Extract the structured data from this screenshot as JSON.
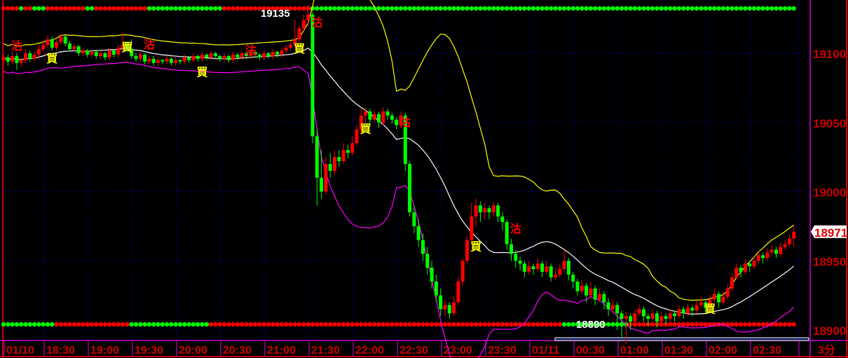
{
  "chart_data": {
    "type": "candlestick",
    "interval_label": "3分",
    "y_ticks": [
      19100,
      19050,
      19000,
      18950,
      18900
    ],
    "ylim": [
      18885,
      19140
    ],
    "x_tick_labels": [
      "01/10",
      "18:30",
      "19:00",
      "19:30",
      "20:00",
      "20:30",
      "21:00",
      "21:30",
      "22:00",
      "22:30",
      "23:00",
      "23:30",
      "01/11",
      "00:30",
      "01:00",
      "01:30",
      "02:00",
      "02:30"
    ],
    "last_price": "18971",
    "high_label": "19135",
    "low_label": "18890",
    "grid": true,
    "colors": {
      "up": "#ff0000",
      "down": "#00ff00",
      "upper_band": "#ffff00",
      "middle_band": "#ffffff",
      "lower_band": "#ff00ff",
      "axis_text": "#cc0000",
      "grid": "#0000cc",
      "frame": "#990099"
    },
    "signal_labels": {
      "buy": "買",
      "sell": "沽"
    },
    "signals": [
      [
        3,
        19106,
        "sell"
      ],
      [
        11,
        19097,
        "buy"
      ],
      [
        28,
        19105,
        "buy"
      ],
      [
        33,
        19107,
        "sell"
      ],
      [
        45,
        19087,
        "buy"
      ],
      [
        56,
        19103,
        "sell"
      ],
      [
        67,
        19104,
        "buy"
      ],
      [
        71,
        19123,
        "sell"
      ],
      [
        82,
        19046,
        "buy"
      ],
      [
        91,
        19051,
        "sell"
      ],
      [
        107,
        18961,
        "buy"
      ],
      [
        116,
        18974,
        "sell"
      ],
      [
        160,
        18916,
        "buy"
      ]
    ],
    "top_dots": "RRRRGRRGGGRRRRRRRRRGGRRRRRRRRRRRRGGGGGGGGGGGGGGGGGRRRRRRRRRRRRRRRRRRRRGGGGGGGGGGGGGGGGGGGGGGGGGGGGGGGGGGGGGGGGGGGGGGGGGGGGGGGGGGGGGGGGGGGGGGGGGGGGGGGGGGGGGGGGGGGGGGGGGGGGGGGGGGGGGGGG",
    "bottom_dots": "GGGGGGGGGGGGRRRRRRRRRRRRRRRRRGGGGGGGGGGGGGGGGGGRRRRRRRRRRRRRRRRRRRRRRRRRRRRRRRRRRRRRRRRRRRRRRRRRRRRRRRRRRRRRRRRRRRRRRRRRRRRRRRRGGGGGGGGGGGGGGGRRRRRRRRRRRRRRRRRRRRRRRRRRRRRRRRRRRRRRR",
    "candles": [
      [
        19095,
        19100,
        19090,
        19097
      ],
      [
        19097,
        19099,
        19091,
        19094
      ],
      [
        19094,
        19101,
        19092,
        19098
      ],
      [
        19098,
        19100,
        19088,
        19093
      ],
      [
        19093,
        19097,
        19090,
        19095
      ],
      [
        19095,
        19103,
        19093,
        19100
      ],
      [
        19100,
        19102,
        19094,
        19096
      ],
      [
        19096,
        19101,
        19094,
        19099
      ],
      [
        19099,
        19106,
        19097,
        19103
      ],
      [
        19103,
        19109,
        19101,
        19106
      ],
      [
        19106,
        19113,
        19104,
        19110
      ],
      [
        19110,
        19112,
        19102,
        19104
      ],
      [
        19104,
        19110,
        19102,
        19108
      ],
      [
        19108,
        19114,
        19106,
        19112
      ],
      [
        19112,
        19113,
        19105,
        19107
      ],
      [
        19107,
        19109,
        19101,
        19103
      ],
      [
        19103,
        19107,
        19101,
        19105
      ],
      [
        19105,
        19106,
        19098,
        19100
      ],
      [
        19100,
        19104,
        19098,
        19102
      ],
      [
        19102,
        19103,
        19097,
        19099
      ],
      [
        19099,
        19103,
        19097,
        19101
      ],
      [
        19101,
        19102,
        19096,
        19098
      ],
      [
        19098,
        19102,
        19096,
        19100
      ],
      [
        19100,
        19101,
        19095,
        19097
      ],
      [
        19097,
        19104,
        19095,
        19102
      ],
      [
        19102,
        19103,
        19097,
        19099
      ],
      [
        19099,
        19106,
        19097,
        19104
      ],
      [
        19104,
        19115,
        19102,
        19106
      ],
      [
        19106,
        19108,
        19101,
        19103
      ],
      [
        19103,
        19110,
        19096,
        19098
      ],
      [
        19098,
        19100,
        19094,
        19096
      ],
      [
        19096,
        19101,
        19094,
        19099
      ],
      [
        19099,
        19100,
        19092,
        19094
      ],
      [
        19094,
        19098,
        19092,
        19096
      ],
      [
        19096,
        19098,
        19091,
        19093
      ],
      [
        19093,
        19097,
        19091,
        19095
      ],
      [
        19095,
        19096,
        19092,
        19094
      ],
      [
        19094,
        19098,
        19092,
        19096
      ],
      [
        19096,
        19097,
        19091,
        19093
      ],
      [
        19093,
        19097,
        19091,
        19095
      ],
      [
        19095,
        19096,
        19092,
        19094
      ],
      [
        19094,
        19099,
        19092,
        19097
      ],
      [
        19097,
        19098,
        19093,
        19095
      ],
      [
        19095,
        19100,
        19093,
        19098
      ],
      [
        19098,
        19099,
        19094,
        19096
      ],
      [
        19096,
        19101,
        19094,
        19099
      ],
      [
        19099,
        19100,
        19095,
        19097
      ],
      [
        19097,
        19102,
        19095,
        19100
      ],
      [
        19100,
        19101,
        19096,
        19098
      ],
      [
        19098,
        19099,
        19094,
        19096
      ],
      [
        19096,
        19100,
        19094,
        19098
      ],
      [
        19098,
        19099,
        19093,
        19095
      ],
      [
        19095,
        19101,
        19093,
        19099
      ],
      [
        19099,
        19100,
        19095,
        19097
      ],
      [
        19097,
        19102,
        19095,
        19100
      ],
      [
        19100,
        19101,
        19096,
        19098
      ],
      [
        19098,
        19103,
        19096,
        19101
      ],
      [
        19101,
        19102,
        19097,
        19099
      ],
      [
        19099,
        19100,
        19095,
        19097
      ],
      [
        19097,
        19102,
        19095,
        19100
      ],
      [
        19100,
        19101,
        19096,
        19098
      ],
      [
        19098,
        19103,
        19096,
        19101
      ],
      [
        19101,
        19102,
        19097,
        19099
      ],
      [
        19099,
        19104,
        19097,
        19102
      ],
      [
        19102,
        19106,
        19100,
        19104
      ],
      [
        19104,
        19108,
        19102,
        19106
      ],
      [
        19106,
        19124,
        19104,
        19110
      ],
      [
        19110,
        19120,
        19108,
        19118
      ],
      [
        19118,
        19128,
        19116,
        19124
      ],
      [
        19124,
        19135,
        19120,
        19128
      ],
      [
        19128,
        19130,
        19035,
        19040
      ],
      [
        19040,
        19045,
        18990,
        19010
      ],
      [
        19010,
        19030,
        18995,
        19000
      ],
      [
        19000,
        19025,
        18998,
        19020
      ],
      [
        19020,
        19028,
        19010,
        19015
      ],
      [
        19015,
        19030,
        19012,
        19025
      ],
      [
        19025,
        19030,
        19018,
        19022
      ],
      [
        19022,
        19035,
        19020,
        19030
      ],
      [
        19030,
        19034,
        19024,
        19028
      ],
      [
        19028,
        19040,
        19026,
        19035
      ],
      [
        19035,
        19048,
        19033,
        19045
      ],
      [
        19045,
        19060,
        19043,
        19055
      ],
      [
        19055,
        19061,
        19050,
        19058
      ],
      [
        19058,
        19060,
        19048,
        19052
      ],
      [
        19052,
        19059,
        19050,
        19056
      ],
      [
        19056,
        19058,
        19046,
        19050
      ],
      [
        19050,
        19061,
        19048,
        19058
      ],
      [
        19058,
        19060,
        19052,
        19055
      ],
      [
        19055,
        19057,
        19049,
        19052
      ],
      [
        19052,
        19054,
        19045,
        19048
      ],
      [
        19048,
        19058,
        19046,
        19055
      ],
      [
        19055,
        19057,
        19015,
        19020
      ],
      [
        19020,
        19022,
        18982,
        18985
      ],
      [
        18985,
        18990,
        18970,
        18975
      ],
      [
        18975,
        18980,
        18960,
        18965
      ],
      [
        18965,
        18970,
        18950,
        18955
      ],
      [
        18955,
        18960,
        18940,
        18945
      ],
      [
        18945,
        18950,
        18930,
        18935
      ],
      [
        18935,
        18940,
        18920,
        18925
      ],
      [
        18925,
        18930,
        18910,
        18915
      ],
      [
        18915,
        18922,
        18910,
        18918
      ],
      [
        18918,
        18920,
        18908,
        18912
      ],
      [
        18912,
        18925,
        18910,
        18920
      ],
      [
        18920,
        18938,
        18918,
        18935
      ],
      [
        18935,
        18952,
        18932,
        18950
      ],
      [
        18950,
        18968,
        18948,
        18965
      ],
      [
        18965,
        18992,
        18962,
        18982
      ],
      [
        18982,
        18995,
        18975,
        18990
      ],
      [
        18990,
        18993,
        18978,
        18985
      ],
      [
        18985,
        18992,
        18980,
        18988
      ],
      [
        18988,
        18990,
        18980,
        18985
      ],
      [
        18985,
        18993,
        18982,
        18990
      ],
      [
        18990,
        18992,
        18978,
        18982
      ],
      [
        18982,
        18985,
        18972,
        18978
      ],
      [
        18978,
        18980,
        18958,
        18962
      ],
      [
        18962,
        18966,
        18950,
        18955
      ],
      [
        18955,
        18958,
        18945,
        18950
      ],
      [
        18950,
        18953,
        18943,
        18948
      ],
      [
        18948,
        18950,
        18938,
        18942
      ],
      [
        18942,
        18950,
        18940,
        18946
      ],
      [
        18946,
        18948,
        18940,
        18944
      ],
      [
        18944,
        18952,
        18942,
        18948
      ],
      [
        18948,
        18950,
        18938,
        18942
      ],
      [
        18942,
        18950,
        18940,
        18946
      ],
      [
        18946,
        18948,
        18935,
        18938
      ],
      [
        18938,
        18945,
        18936,
        18940
      ],
      [
        18940,
        18948,
        18938,
        18944
      ],
      [
        18944,
        18958,
        18942,
        18950
      ],
      [
        18950,
        18952,
        18936,
        18940
      ],
      [
        18940,
        18942,
        18930,
        18935
      ],
      [
        18935,
        18937,
        18925,
        18928
      ],
      [
        18928,
        18936,
        18926,
        18932
      ],
      [
        18932,
        18934,
        18920,
        18925
      ],
      [
        18925,
        18935,
        18922,
        18930
      ],
      [
        18930,
        18932,
        18918,
        18922
      ],
      [
        18922,
        18930,
        18920,
        18926
      ],
      [
        18926,
        18928,
        18915,
        18920
      ],
      [
        18920,
        18923,
        18910,
        18915
      ],
      [
        18915,
        18922,
        18912,
        18918
      ],
      [
        18918,
        18920,
        18900,
        18912
      ],
      [
        18912,
        18914,
        18895,
        18908
      ],
      [
        18908,
        18913,
        18890,
        18910
      ],
      [
        18910,
        18912,
        18900,
        18906
      ],
      [
        18906,
        18915,
        18904,
        18912
      ],
      [
        18912,
        18918,
        18910,
        18915
      ],
      [
        18915,
        18917,
        18906,
        18910
      ],
      [
        18910,
        18912,
        18903,
        18908
      ],
      [
        18908,
        18915,
        18906,
        18912
      ],
      [
        18912,
        18914,
        18902,
        18906
      ],
      [
        18906,
        18913,
        18904,
        18910
      ],
      [
        18910,
        18912,
        18904,
        18908
      ],
      [
        18908,
        18915,
        18906,
        18912
      ],
      [
        18912,
        18914,
        18906,
        18910
      ],
      [
        18910,
        18918,
        18908,
        18915
      ],
      [
        18915,
        18917,
        18908,
        18912
      ],
      [
        18912,
        18919,
        18910,
        18916
      ],
      [
        18916,
        18918,
        18910,
        18914
      ],
      [
        18914,
        18921,
        18912,
        18918
      ],
      [
        18918,
        18924,
        18916,
        18920
      ],
      [
        18920,
        18922,
        18912,
        18916
      ],
      [
        18916,
        18925,
        18914,
        18922
      ],
      [
        18922,
        18930,
        18920,
        18926
      ],
      [
        18926,
        18928,
        18916,
        18920
      ],
      [
        18920,
        18927,
        18918,
        18924
      ],
      [
        18924,
        18933,
        18922,
        18930
      ],
      [
        18930,
        18941,
        18928,
        18938
      ],
      [
        18938,
        18948,
        18936,
        18945
      ],
      [
        18945,
        18947,
        18938,
        18942
      ],
      [
        18942,
        18951,
        18940,
        18948
      ],
      [
        18948,
        18950,
        18942,
        18946
      ],
      [
        18946,
        18953,
        18944,
        18950
      ],
      [
        18950,
        18957,
        18948,
        18954
      ],
      [
        18954,
        18956,
        18948,
        18952
      ],
      [
        18952,
        18959,
        18950,
        18956
      ],
      [
        18956,
        18961,
        18954,
        18958
      ],
      [
        18958,
        18960,
        18952,
        18955
      ],
      [
        18955,
        18963,
        18953,
        18960
      ],
      [
        18960,
        18965,
        18958,
        18962
      ],
      [
        18962,
        18969,
        18960,
        18966
      ],
      [
        18966,
        18975,
        18960,
        18971
      ]
    ]
  }
}
